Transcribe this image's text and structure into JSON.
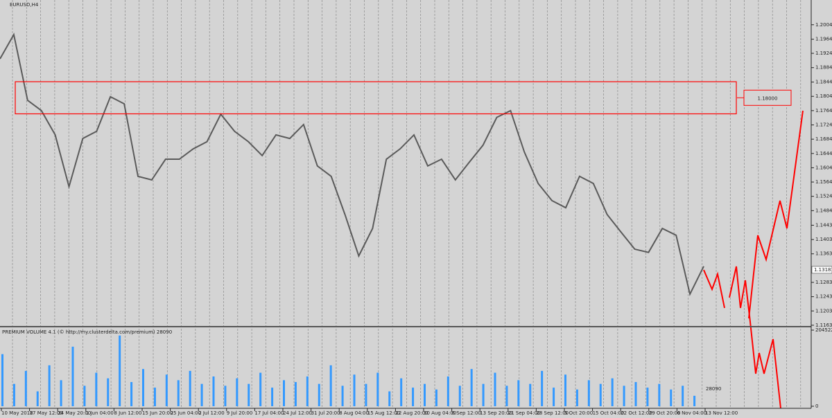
{
  "chart_data": [
    {
      "type": "line",
      "title": "EURUSD,H4",
      "color": "#5a5a5a",
      "x_labels": [
        "10 May 2018",
        "17 May 12:00",
        "24 May 20:00",
        "1 Jun 04:00",
        "8 Jun 12:00",
        "15 Jun 20:00",
        "25 Jun 04:00",
        "2 Jul 12:00",
        "9 Jul 20:00",
        "17 Jul 04:00",
        "24 Jul 12:00",
        "31 Jul 20:00",
        "8 Aug 04:00",
        "15 Aug 12:00",
        "22 Aug 20:00",
        "30 Aug 04:00",
        "6 Sep 12:00",
        "13 Sep 20:00",
        "21 Sep 04:00",
        "28 Sep 12:00",
        "5 Oct 20:00",
        "15 Oct 04:00",
        "22 Oct 12:00",
        "29 Oct 20:00",
        "6 Nov 04:00",
        "13 Nov 12:00"
      ],
      "values": [
        1.1909,
        1.1977,
        1.1793,
        1.1764,
        1.1696,
        1.1551,
        1.1686,
        1.1706,
        1.1803,
        1.1783,
        1.158,
        1.157,
        1.1628,
        1.1628,
        1.1657,
        1.1677,
        1.1754,
        1.1706,
        1.1677,
        1.1638,
        1.1696,
        1.1686,
        1.1725,
        1.1609,
        1.158,
        1.1473,
        1.1357,
        1.1434,
        1.1628,
        1.1657,
        1.1696,
        1.1609,
        1.1628,
        1.157,
        1.1619,
        1.1667,
        1.1745,
        1.1764,
        1.1648,
        1.156,
        1.1512,
        1.1492,
        1.158,
        1.156,
        1.1473,
        1.1424,
        1.1376,
        1.1367,
        1.1434,
        1.1415,
        1.125,
        1.1328
      ],
      "ylim": [
        1.1159,
        1.2068
      ],
      "yticks": [
        {
          "value": 1.20045,
          "label": "1.20045"
        },
        {
          "value": 1.1964,
          "label": "1.19640"
        },
        {
          "value": 1.19245,
          "label": "1.19245"
        },
        {
          "value": 1.18844,
          "label": "1.18844"
        },
        {
          "value": 1.1844,
          "label": "1.18440"
        },
        {
          "value": 1.1804,
          "label": "1.18040"
        },
        {
          "value": 1.1764,
          "label": "1.17640"
        },
        {
          "value": 1.1724,
          "label": "1.17240"
        },
        {
          "value": 1.1684,
          "label": "1.16840"
        },
        {
          "value": 1.1644,
          "label": "1.16440"
        },
        {
          "value": 1.1604,
          "label": "1.16040"
        },
        {
          "value": 1.1564,
          "label": "1.15640"
        },
        {
          "value": 1.1524,
          "label": "1.15240"
        },
        {
          "value": 1.1484,
          "label": "1.14840"
        },
        {
          "value": 1.1443,
          "label": "1.14430"
        },
        {
          "value": 1.1403,
          "label": "1.14030"
        },
        {
          "value": 1.1363,
          "label": "1.13630"
        },
        {
          "value": 1.1283,
          "label": "1.12830"
        },
        {
          "value": 1.1243,
          "label": "1.12430"
        },
        {
          "value": 1.1203,
          "label": "1.12030"
        },
        {
          "value": 1.1163,
          "label": "1.11630"
        }
      ],
      "current_price": 1.13181,
      "zone_low": 1.1755,
      "zone_high": 1.1845,
      "zone_color": "#ff0000",
      "zone_label": {
        "value": 1.18,
        "label": "1.18000"
      }
    },
    {
      "type": "bar",
      "title": "PREMIUM VOLUME 4.1 (© http://my.clusterdelta.com/premium) 28090",
      "color": "#3399ff",
      "values": [
        140000,
        60000,
        95000,
        40000,
        110000,
        70000,
        160000,
        55000,
        90000,
        75000,
        190000,
        65000,
        100000,
        50000,
        85000,
        70000,
        95000,
        60000,
        80000,
        55000,
        75000,
        60000,
        90000,
        50000,
        70000,
        65000,
        80000,
        60000,
        110000,
        55000,
        85000,
        60000,
        90000,
        40000,
        75000,
        50000,
        60000,
        45000,
        80000,
        55000,
        100000,
        60000,
        90000,
        55000,
        70000,
        60000,
        95000,
        50000,
        85000,
        45000,
        70000,
        60000,
        75000,
        55000,
        65000,
        50000,
        60000,
        45000,
        55000,
        28090
      ],
      "ylim": [
        0,
        204522
      ],
      "yticks": [
        204522,
        0
      ],
      "current_value": 28090
    }
  ]
}
